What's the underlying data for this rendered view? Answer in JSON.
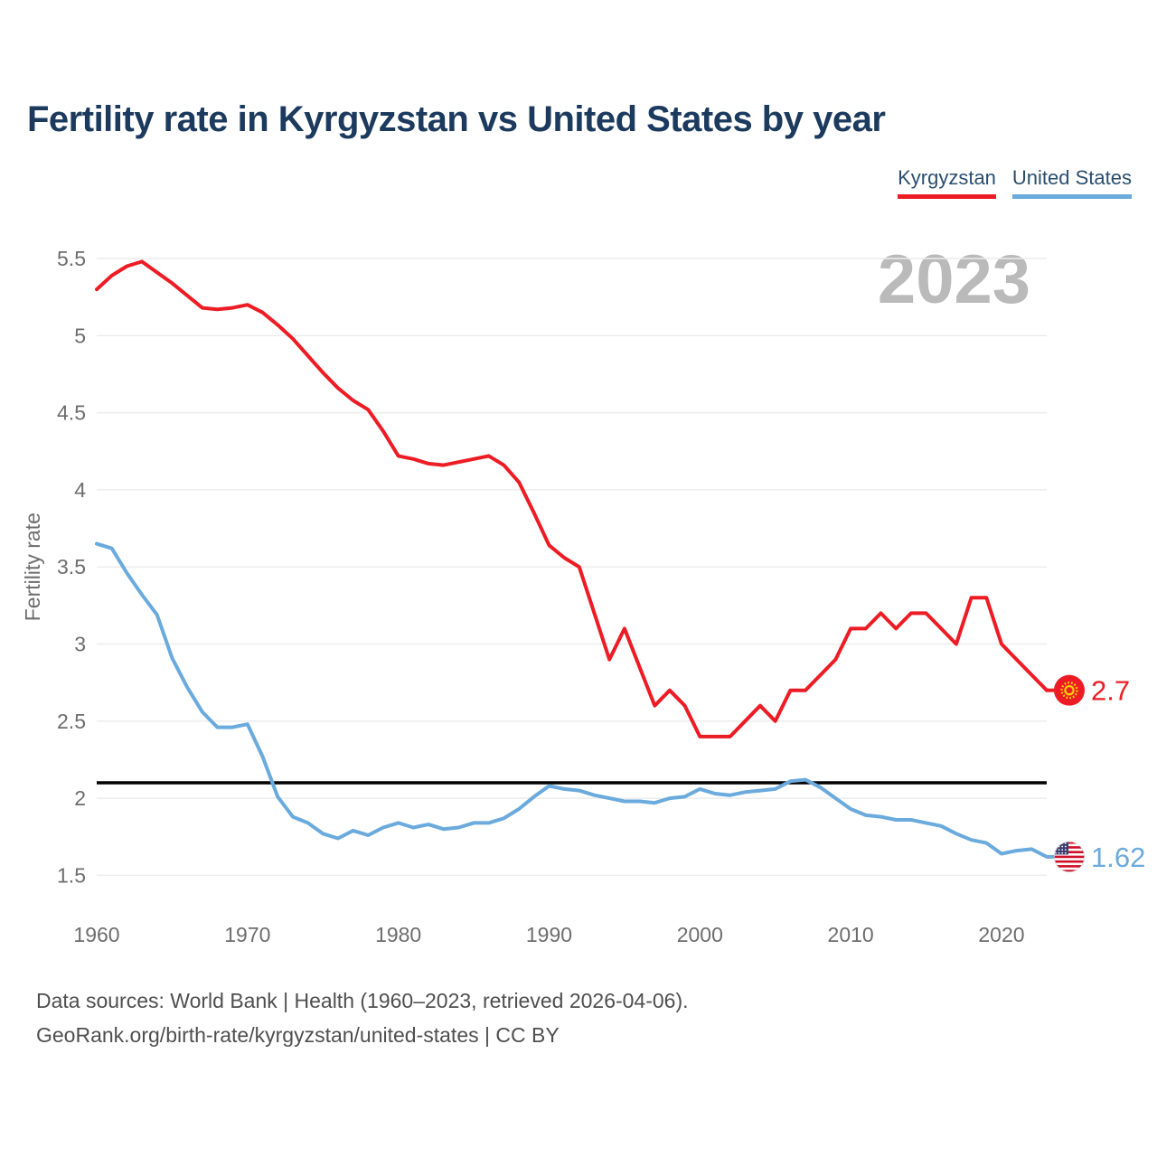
{
  "page": {
    "title": "Fertility rate in Kyrgyzstan vs United States by year",
    "watermark_year": "2023",
    "footer_line1": "Data sources: World Bank | Health (1960–2023, retrieved 2026-04-06).",
    "footer_line2": "GeoRank.org/birth-rate/kyrgyzstan/united-states | CC BY"
  },
  "legend": {
    "items": [
      {
        "label": "Kyrgyzstan",
        "color": "#ed1c24"
      },
      {
        "label": "United States",
        "color": "#6aaadc"
      }
    ]
  },
  "colors": {
    "title": "#1b3a5e",
    "axis_text": "#6d6d6d",
    "gridline": "#ececec",
    "reference_line": "#000000",
    "watermark": "#bababa",
    "footer_text": "#4f4f4f",
    "kyrgyzstan_red": "#ed1c24",
    "united_states_blue": "#6aaadc",
    "sun_yellow": "#ffd200",
    "flag_blue": "#3c3b6e"
  },
  "chart_data": {
    "type": "line",
    "title": "Fertility rate in Kyrgyzstan vs United States by year",
    "xlabel": "",
    "ylabel": "Fertility rate",
    "grid": true,
    "legend_position": "top-right",
    "current_year_badge": "2023",
    "xlim": [
      1960,
      2023
    ],
    "ylim": [
      1.5,
      5.5
    ],
    "x": [
      1960,
      1961,
      1962,
      1963,
      1964,
      1965,
      1966,
      1967,
      1968,
      1969,
      1970,
      1971,
      1972,
      1973,
      1974,
      1975,
      1976,
      1977,
      1978,
      1979,
      1980,
      1981,
      1982,
      1983,
      1984,
      1985,
      1986,
      1987,
      1988,
      1989,
      1990,
      1991,
      1992,
      1993,
      1994,
      1995,
      1996,
      1997,
      1998,
      1999,
      2000,
      2001,
      2002,
      2003,
      2004,
      2005,
      2006,
      2007,
      2008,
      2009,
      2010,
      2011,
      2012,
      2013,
      2014,
      2015,
      2016,
      2017,
      2018,
      2019,
      2020,
      2021,
      2022,
      2023
    ],
    "series": [
      {
        "name": "Kyrgyzstan",
        "color": "#ed1c24",
        "end_label": "2.7",
        "end_marker": "kyrgyzstan-flag",
        "values": [
          5.3,
          5.39,
          5.45,
          5.48,
          5.41,
          5.34,
          5.26,
          5.18,
          5.17,
          5.18,
          5.2,
          5.15,
          5.07,
          4.98,
          4.87,
          4.76,
          4.66,
          4.58,
          4.52,
          4.38,
          4.22,
          4.2,
          4.17,
          4.16,
          4.18,
          4.2,
          4.22,
          4.16,
          4.05,
          3.85,
          3.64,
          3.56,
          3.5,
          3.2,
          2.9,
          3.1,
          2.85,
          2.6,
          2.7,
          2.6,
          2.4,
          2.4,
          2.4,
          2.5,
          2.6,
          2.5,
          2.7,
          2.7,
          2.8,
          2.9,
          3.1,
          3.1,
          3.2,
          3.1,
          3.2,
          3.2,
          3.1,
          3.0,
          3.3,
          3.3,
          3.0,
          2.9,
          2.8,
          2.7
        ]
      },
      {
        "name": "United States",
        "color": "#6aaadc",
        "end_label": "1.62",
        "end_marker": "us-flag",
        "values": [
          3.65,
          3.62,
          3.46,
          3.32,
          3.19,
          2.91,
          2.72,
          2.56,
          2.46,
          2.46,
          2.48,
          2.27,
          2.01,
          1.88,
          1.84,
          1.77,
          1.74,
          1.79,
          1.76,
          1.81,
          1.84,
          1.81,
          1.83,
          1.8,
          1.81,
          1.84,
          1.84,
          1.87,
          1.93,
          2.01,
          2.08,
          2.06,
          2.05,
          2.02,
          2.0,
          1.98,
          1.98,
          1.97,
          2.0,
          2.01,
          2.06,
          2.03,
          2.02,
          2.04,
          2.05,
          2.06,
          2.11,
          2.12,
          2.07,
          2.0,
          1.93,
          1.89,
          1.88,
          1.86,
          1.86,
          1.84,
          1.82,
          1.77,
          1.73,
          1.71,
          1.64,
          1.66,
          1.67,
          1.62
        ]
      }
    ],
    "reference_line": {
      "value": 2.1,
      "color": "#000000"
    },
    "yticks": [
      {
        "value": 1.5,
        "label": "1.5"
      },
      {
        "value": 2.0,
        "label": "2"
      },
      {
        "value": 2.5,
        "label": "2.5"
      },
      {
        "value": 3.0,
        "label": "3"
      },
      {
        "value": 3.5,
        "label": "3.5"
      },
      {
        "value": 4.0,
        "label": "4"
      },
      {
        "value": 4.5,
        "label": "4.5"
      },
      {
        "value": 5.0,
        "label": "5"
      },
      {
        "value": 5.5,
        "label": "5.5"
      }
    ],
    "xticks": [
      {
        "value": 1960,
        "label": "1960"
      },
      {
        "value": 1970,
        "label": "1970"
      },
      {
        "value": 1980,
        "label": "1980"
      },
      {
        "value": 1990,
        "label": "1990"
      },
      {
        "value": 2000,
        "label": "2000"
      },
      {
        "value": 2010,
        "label": "2010"
      },
      {
        "value": 2020,
        "label": "2020"
      }
    ]
  }
}
